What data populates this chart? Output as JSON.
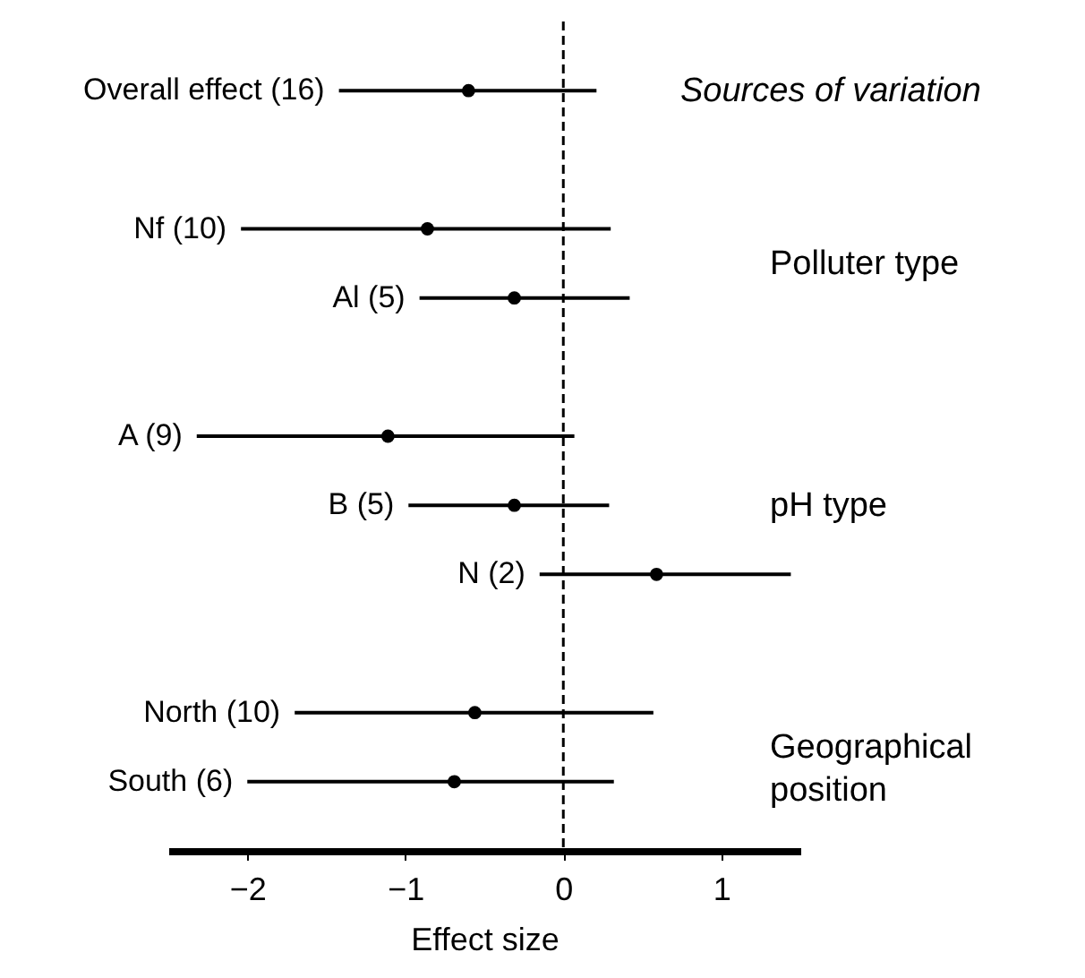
{
  "chart_data": {
    "type": "scatter",
    "orientation": "horizontal",
    "xlabel": "Effect size",
    "categories": [
      "Overall effect (16)",
      null,
      "Nf (10)",
      "Al (5)",
      null,
      "A (9)",
      "B (5)",
      "N (2)",
      null,
      "North (10)",
      "South (6)"
    ],
    "values": [
      -0.6,
      null,
      -0.86,
      -0.31,
      null,
      -1.11,
      -0.31,
      0.59,
      null,
      -0.56,
      -0.69
    ],
    "errors": [
      [
        -1.42,
        0.21
      ],
      null,
      [
        -2.04,
        0.3
      ],
      [
        -0.91,
        0.42
      ],
      null,
      [
        -2.32,
        0.07
      ],
      [
        -0.98,
        0.29
      ],
      [
        -0.15,
        1.44
      ],
      null,
      [
        -1.7,
        0.57
      ],
      [
        -2.0,
        0.32
      ]
    ],
    "color": "#000000",
    "marker": "circle",
    "xlim": [
      -2.5,
      1.5
    ],
    "xticks": [
      -2,
      -1,
      0,
      1
    ],
    "ref_lines": [
      {
        "axis": "x",
        "value": 0,
        "line_style": "dashed"
      }
    ],
    "annotations": [
      "Sources of variation",
      "Polluter type",
      "pH type",
      "Geographical position"
    ],
    "grid": false,
    "tick_labels": "x"
  }
}
